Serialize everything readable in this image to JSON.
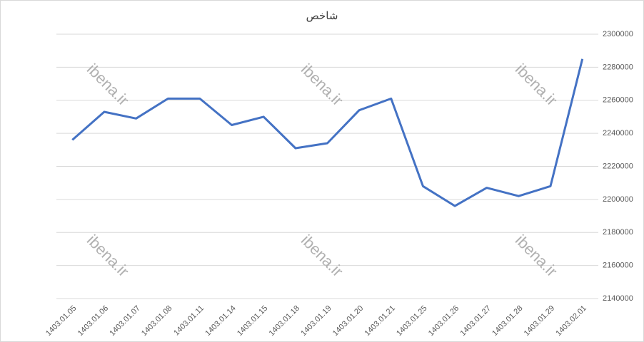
{
  "chart_data": {
    "type": "line",
    "title": "شاخص",
    "categories": [
      "1403.01.05",
      "1403.01.06",
      "1403.01.07",
      "1403.01.08",
      "1403.01.11",
      "1403.01.14",
      "1403.01.15",
      "1403.01.18",
      "1403.01.19",
      "1403.01.20",
      "1403.01.21",
      "1403.01.25",
      "1403.01.26",
      "1403.01.27",
      "1403.01.28",
      "1403.01.29",
      "1403.02.01"
    ],
    "series": [
      {
        "name": "شاخص",
        "color": "#4472c4",
        "values": [
          2236000,
          2253000,
          2249000,
          2261000,
          2261000,
          2245000,
          2250000,
          2231000,
          2234000,
          2254000,
          2261000,
          2208000,
          2196000,
          2207000,
          2202000,
          2208000,
          2285000
        ]
      }
    ],
    "ylim": [
      2140000,
      2300000
    ],
    "yticks": [
      2140000,
      2160000,
      2180000,
      2200000,
      2220000,
      2240000,
      2260000,
      2280000,
      2300000
    ],
    "grid": true,
    "y_axis_side": "right",
    "watermark": "ibena.ir"
  }
}
